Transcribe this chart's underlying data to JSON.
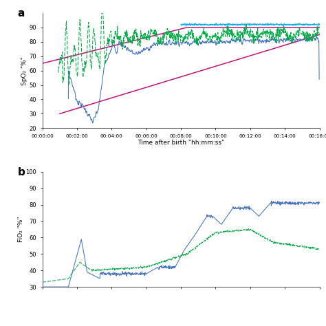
{
  "xlabel": "Time after birth \"hh:mm:ss\"",
  "ylabel_a": "SpO₂ \"%\"",
  "ylabel_b": "FiO₂ \"%\"",
  "xlim": [
    0,
    960
  ],
  "ylim_a": [
    20,
    100
  ],
  "ylim_b": [
    30,
    100
  ],
  "yticks_a": [
    20,
    30,
    40,
    50,
    60,
    70,
    80,
    90
  ],
  "yticks_b": [
    30,
    40,
    50,
    60,
    70,
    80,
    90,
    100
  ],
  "xticks": [
    0,
    120,
    240,
    360,
    480,
    600,
    720,
    840,
    960
  ],
  "xtick_labels": [
    "00:00:00",
    "00:02:00",
    "00:04:00",
    "00:06:00",
    "00:08:00",
    "00:10:00",
    "00:12:00",
    "00:14:00",
    "00:16:00"
  ],
  "color_blue": "#4472C4",
  "color_green": "#00AA44",
  "color_cyan": "#00B0F0",
  "color_pink": "#C0147A",
  "background": "#FFFFFF"
}
